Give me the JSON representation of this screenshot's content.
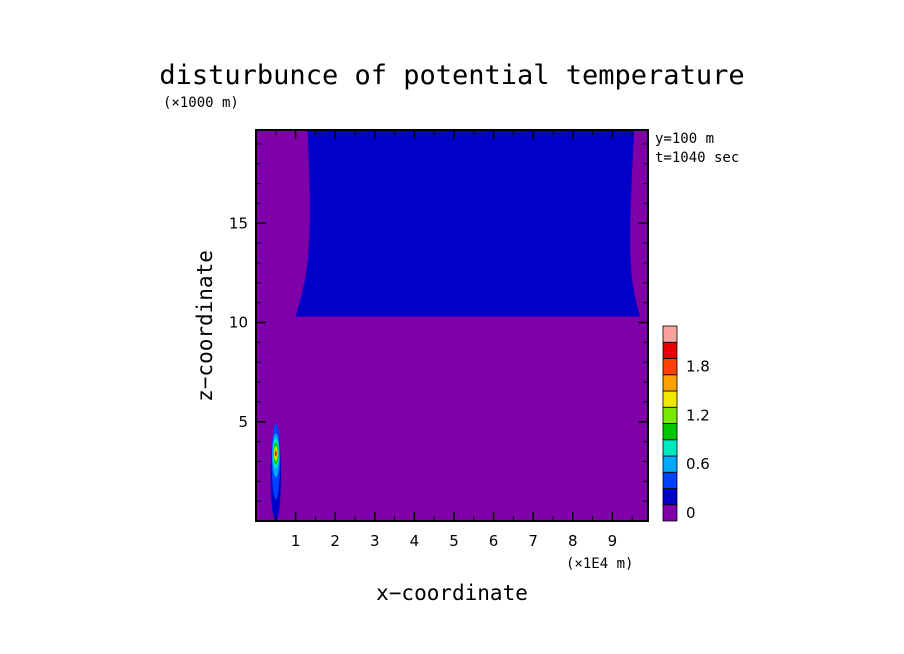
{
  "chart_data": {
    "type": "heatmap",
    "title": "disturbunce of potential temperature",
    "xlabel": "x−coordinate",
    "ylabel": "z−coordinate",
    "x_unit": "(×1E4 m)",
    "y_unit": "(×1000 m)",
    "annotations": [
      "y=100 m",
      "t=1040 sec"
    ],
    "xlim": [
      0,
      9.9
    ],
    "ylim": [
      0,
      19.7
    ],
    "x_ticks": [
      "1",
      "2",
      "3",
      "4",
      "5",
      "6",
      "7",
      "8",
      "9"
    ],
    "y_ticks": [
      "5",
      "10",
      "15"
    ],
    "colorbar": {
      "levels": [
        -0.1,
        0.1,
        0.3,
        0.5,
        0.7,
        0.9,
        1.1,
        1.3,
        1.5,
        1.7,
        1.9,
        2.1
      ],
      "colors": [
        "#7f00a8",
        "#0000c8",
        "#0040ff",
        "#00a8ff",
        "#00e8c0",
        "#00c800",
        "#78e800",
        "#f0e800",
        "#ffa000",
        "#ff4000",
        "#e80000",
        "#ffa0a0"
      ],
      "tick_labels": [
        "0",
        "0.6",
        "1.2",
        "1.8"
      ]
    },
    "regions": [
      {
        "name": "background",
        "level": 0
      },
      {
        "name": "upper-layer",
        "level": 0.2,
        "z_range": [
          10.3,
          19.7
        ],
        "x_range_bottom": [
          1.0,
          9.7
        ],
        "x_range_top": [
          1.3,
          9.55
        ]
      },
      {
        "name": "thermal-bubble",
        "x_center": 0.5,
        "z_range": [
          0,
          4.6
        ],
        "max_value": 1.9,
        "peak_z": 3.4
      }
    ]
  }
}
